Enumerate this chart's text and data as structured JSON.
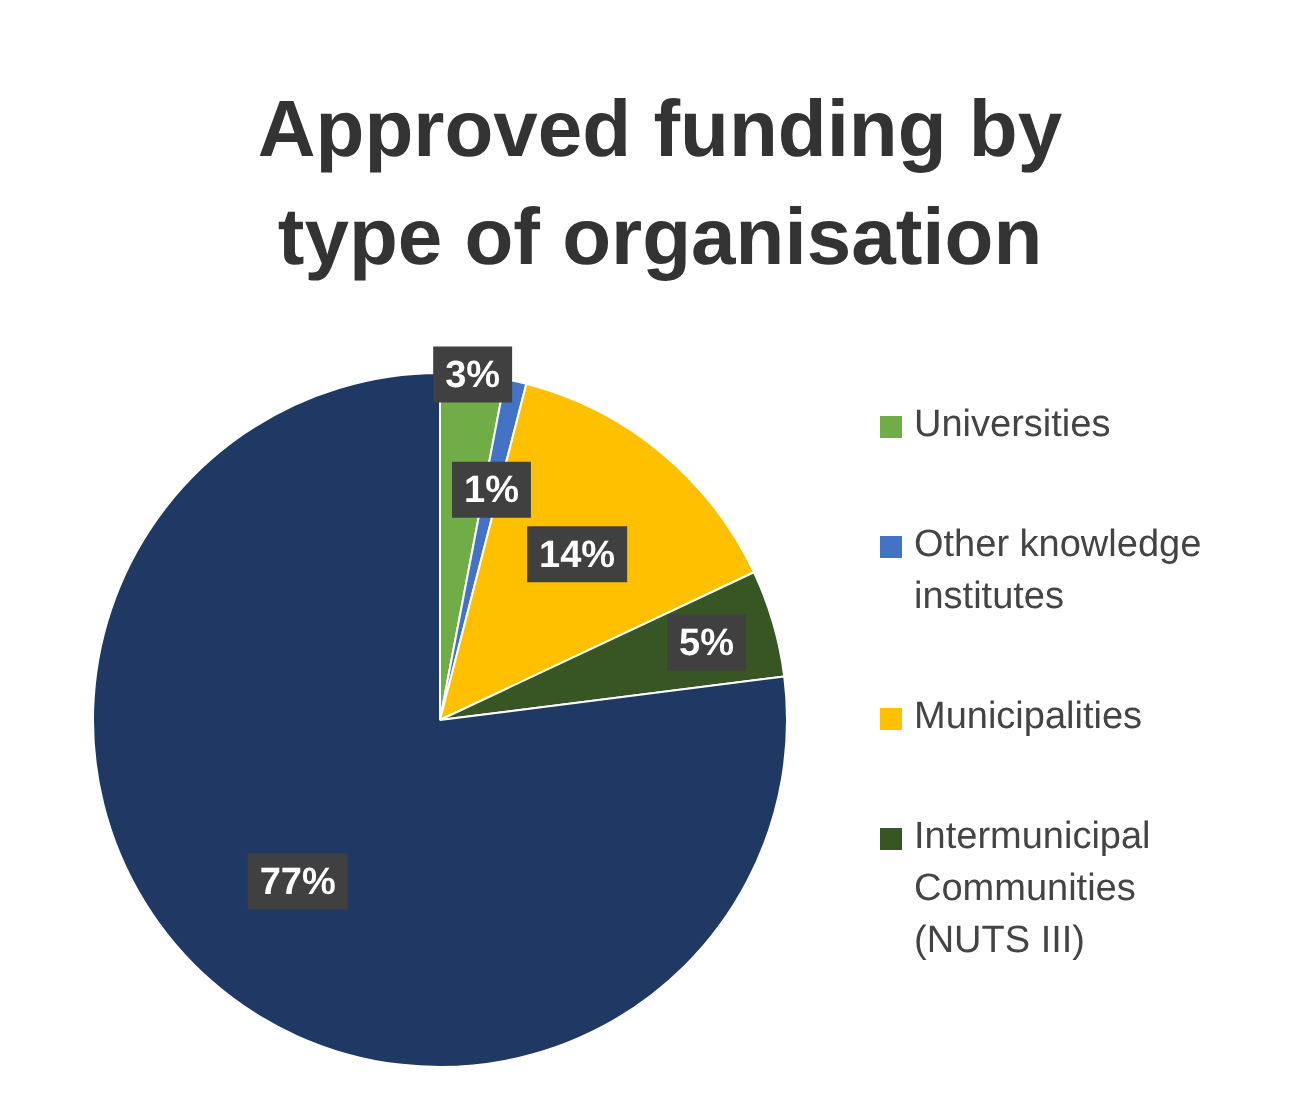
{
  "chart_data": {
    "type": "pie",
    "title": "Approved funding by type of organisation",
    "categories": [
      "Universities",
      "Other knowledge institutes",
      "Municipalities",
      "Intermunicipal Communities (NUTS III)",
      null
    ],
    "values": [
      3,
      1,
      14,
      5,
      77
    ],
    "colors": [
      "#70ad47",
      "#4472c4",
      "#ffc000",
      "#375623",
      "#203864"
    ],
    "value_labels": [
      "3%",
      "1%",
      "14%",
      "5%",
      "77%"
    ],
    "legend": "right"
  }
}
